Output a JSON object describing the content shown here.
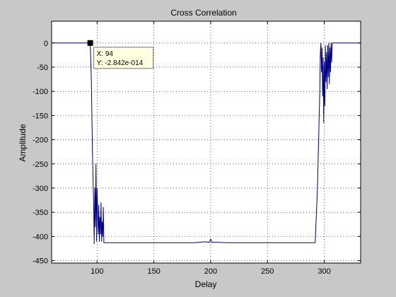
{
  "chart_data": {
    "type": "line",
    "title": "Cross Correlation",
    "xlabel": "Delay",
    "ylabel": "Amplitude",
    "xlim": [
      60,
      332
    ],
    "ylim": [
      -455,
      45
    ],
    "xticks": [
      100,
      150,
      200,
      250,
      300
    ],
    "yticks": [
      0,
      -50,
      -100,
      -150,
      -200,
      -250,
      -300,
      -350,
      -400,
      -450
    ],
    "grid": true,
    "line_color": "#000080",
    "series": [
      {
        "x": [
          60,
          88,
          94,
          95,
          96,
          97,
          97.5,
          98,
          98.5,
          99,
          99.5,
          100,
          100.5,
          101,
          101.5,
          102,
          102.5,
          103,
          103.5,
          104,
          104.5,
          105,
          105.5,
          106,
          107,
          110,
          150,
          185,
          195,
          199,
          200,
          201,
          205,
          215,
          250,
          292,
          294,
          295,
          296,
          296.5,
          297,
          297.5,
          298,
          298.5,
          299,
          299.5,
          300,
          300.5,
          301,
          301.5,
          302,
          302.5,
          303,
          303.5,
          304,
          304.5,
          305,
          305.5,
          306,
          306.5,
          307,
          308,
          332
        ],
        "y": [
          0,
          0,
          0,
          -80,
          -230,
          -330,
          -415,
          -300,
          -380,
          -250,
          -410,
          -300,
          -350,
          -395,
          -335,
          -410,
          -360,
          -395,
          -330,
          -410,
          -370,
          -400,
          -340,
          -413,
          -413,
          -413,
          -413,
          -413,
          -411,
          -412,
          -405,
          -412,
          -412,
          -413,
          -413,
          -413,
          -300,
          -200,
          -100,
          -20,
          0,
          -60,
          -10,
          -110,
          -30,
          -165,
          -40,
          -130,
          -5,
          -80,
          -20,
          -95,
          -5,
          -70,
          0,
          -85,
          -10,
          -60,
          0,
          -40,
          0,
          0,
          0
        ]
      }
    ],
    "annotation": {
      "x": 94,
      "y": 0,
      "lines": [
        "X: 94",
        "Y: -2.842e-014"
      ]
    }
  }
}
